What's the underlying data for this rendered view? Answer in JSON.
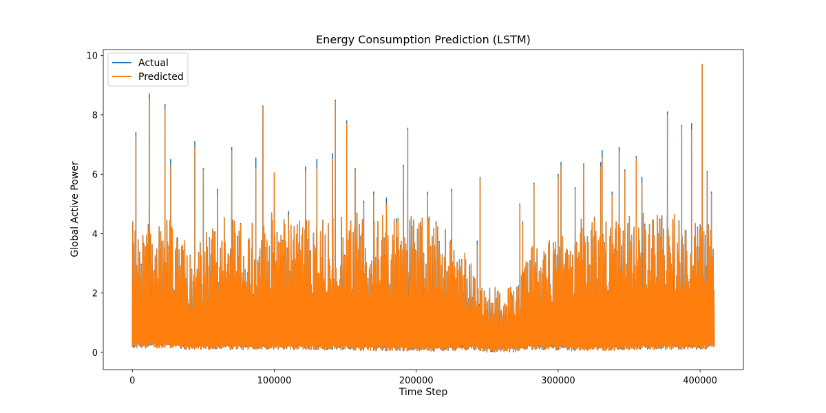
{
  "chart_data": {
    "type": "line",
    "title": "Energy Consumption Prediction (LSTM)",
    "xlabel": "Time Step",
    "ylabel": "Global Active Power",
    "xlim": [
      -20500,
      430500
    ],
    "ylim": [
      -0.58,
      10.2
    ],
    "xticks": [
      0,
      100000,
      200000,
      300000,
      400000
    ],
    "xtick_labels": [
      "0",
      "100000",
      "200000",
      "300000",
      "400000"
    ],
    "yticks": [
      0,
      2,
      4,
      6,
      8,
      10
    ],
    "ytick_labels": [
      "0",
      "2",
      "4",
      "6",
      "8",
      "10"
    ],
    "grid": false,
    "legend_position": "upper-left",
    "x_range": [
      0,
      410000
    ],
    "series": [
      {
        "name": "Actual",
        "color": "#1f77b4",
        "peaks": [
          [
            2500,
            7.4
          ],
          [
            12000,
            8.7
          ],
          [
            23000,
            8.35
          ],
          [
            27000,
            6.5
          ],
          [
            44000,
            7.1
          ],
          [
            50000,
            6.2
          ],
          [
            60000,
            5.5
          ],
          [
            70000,
            6.9
          ],
          [
            87000,
            6.55
          ],
          [
            92000,
            8.3
          ],
          [
            100000,
            6.05
          ],
          [
            110000,
            4.75
          ],
          [
            122000,
            6.25
          ],
          [
            130000,
            6.5
          ],
          [
            141000,
            6.7
          ],
          [
            143000,
            8.5
          ],
          [
            151000,
            7.8
          ],
          [
            157000,
            6.2
          ],
          [
            163000,
            5.1
          ],
          [
            170000,
            5.4
          ],
          [
            179000,
            5.2
          ],
          [
            186000,
            4.5
          ],
          [
            191000,
            6.3
          ],
          [
            194000,
            7.55
          ],
          [
            208000,
            5.4
          ],
          [
            214000,
            4.4
          ],
          [
            225000,
            5.5
          ],
          [
            243000,
            3.75
          ],
          [
            245000,
            5.9
          ],
          [
            273000,
            5.0
          ],
          [
            275000,
            4.4
          ],
          [
            283000,
            5.7
          ],
          [
            300000,
            6.0
          ],
          [
            302000,
            6.4
          ],
          [
            312000,
            5.55
          ],
          [
            318000,
            6.35
          ],
          [
            330000,
            6.4
          ],
          [
            331000,
            6.8
          ],
          [
            338000,
            5.4
          ],
          [
            343000,
            6.9
          ],
          [
            347000,
            6.15
          ],
          [
            355000,
            6.6
          ],
          [
            359000,
            5.9
          ],
          [
            377000,
            8.1
          ],
          [
            387000,
            7.65
          ],
          [
            394000,
            7.7
          ],
          [
            400000,
            4.3
          ],
          [
            401500,
            9.7
          ],
          [
            405000,
            6.1
          ],
          [
            408000,
            5.4
          ]
        ]
      },
      {
        "name": "Predicted",
        "color": "#ff7f0e",
        "peaks": [
          [
            2500,
            7.25
          ],
          [
            12000,
            8.55
          ],
          [
            23000,
            8.2
          ],
          [
            27000,
            6.3
          ],
          [
            44000,
            6.95
          ],
          [
            50000,
            6.15
          ],
          [
            60000,
            5.3
          ],
          [
            70000,
            6.8
          ],
          [
            87000,
            6.2
          ],
          [
            92000,
            8.25
          ],
          [
            100000,
            6.05
          ],
          [
            110000,
            4.6
          ],
          [
            122000,
            6.1
          ],
          [
            130000,
            6.2
          ],
          [
            141000,
            6.5
          ],
          [
            143000,
            8.45
          ],
          [
            151000,
            7.7
          ],
          [
            157000,
            6.15
          ],
          [
            163000,
            5.0
          ],
          [
            170000,
            5.3
          ],
          [
            179000,
            5.0
          ],
          [
            186000,
            4.35
          ],
          [
            191000,
            6.25
          ],
          [
            194000,
            7.5
          ],
          [
            208000,
            5.3
          ],
          [
            214000,
            4.3
          ],
          [
            225000,
            5.4
          ],
          [
            243000,
            3.6
          ],
          [
            245000,
            5.85
          ],
          [
            273000,
            4.95
          ],
          [
            275000,
            4.3
          ],
          [
            283000,
            5.65
          ],
          [
            300000,
            5.9
          ],
          [
            302000,
            6.3
          ],
          [
            312000,
            5.5
          ],
          [
            318000,
            6.3
          ],
          [
            330000,
            6.25
          ],
          [
            331000,
            6.55
          ],
          [
            338000,
            5.3
          ],
          [
            343000,
            6.75
          ],
          [
            347000,
            6.1
          ],
          [
            355000,
            6.55
          ],
          [
            359000,
            5.7
          ],
          [
            377000,
            8.0
          ],
          [
            387000,
            7.6
          ],
          [
            394000,
            7.5
          ],
          [
            400000,
            4.25
          ],
          [
            401500,
            9.7
          ],
          [
            405000,
            6.05
          ],
          [
            408000,
            5.35
          ]
        ]
      }
    ],
    "band": {
      "x": [
        0,
        30000,
        40000,
        60000,
        100000,
        140000,
        180000,
        220000,
        240000,
        250000,
        270000,
        280000,
        320000,
        360000,
        400000,
        410000
      ],
      "lower": [
        0.15,
        0.15,
        0.1,
        0.1,
        0.1,
        0.1,
        0.05,
        0.05,
        0.1,
        0.02,
        0.02,
        0.1,
        0.05,
        0.1,
        0.1,
        0.15
      ],
      "upper": [
        4.4,
        4.6,
        3.4,
        4.6,
        4.7,
        4.7,
        4.7,
        4.5,
        3.0,
        2.2,
        2.2,
        3.6,
        4.6,
        4.7,
        4.6,
        4.2
      ]
    }
  }
}
